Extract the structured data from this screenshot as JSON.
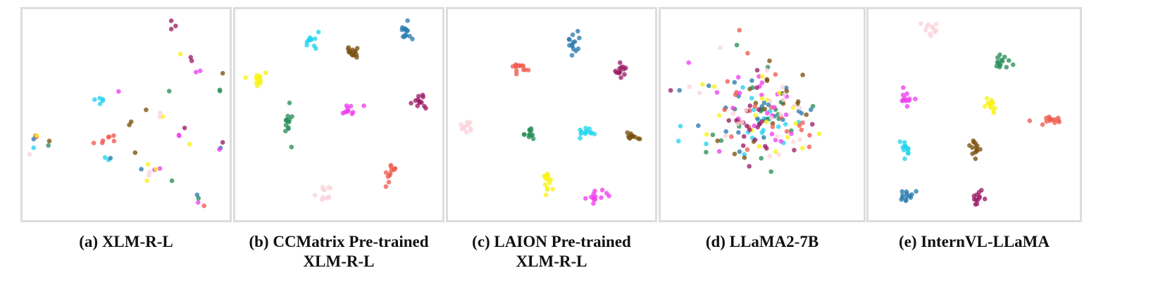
{
  "palette": {
    "cyan": "#22d3ee",
    "blue": "#2b7bb0",
    "brown": "#7a5210",
    "green": "#2a8f5a",
    "red": "#ef5b50",
    "magenta": "#ee3ff0",
    "yellow": "#f8f214",
    "maroon": "#9c1c66",
    "pink": "#fbd3dd"
  },
  "chart_data": [
    {
      "type": "scatter",
      "caption_lines": [
        "(a) XLM-R-L"
      ],
      "xlim": [
        0,
        100
      ],
      "ylim": [
        0,
        100
      ],
      "grid": false,
      "axes": false,
      "clusters": [
        {
          "color": "cyan",
          "center": [
            36,
            60
          ],
          "spread": [
            4,
            4
          ],
          "n": 5
        },
        {
          "color": "cyan",
          "center": [
            40,
            28
          ],
          "spread": [
            1.5,
            1.5
          ],
          "n": 2
        },
        {
          "color": "cyan",
          "center": [
            3,
            34
          ],
          "spread": [
            1,
            1
          ],
          "n": 1
        },
        {
          "color": "red",
          "center": [
            40,
            37
          ],
          "spread": [
            6,
            3
          ],
          "n": 7
        },
        {
          "color": "red",
          "center": [
            4,
            40
          ],
          "spread": [
            1.5,
            1.5
          ],
          "n": 2
        },
        {
          "color": "red",
          "center": [
            89,
            5
          ],
          "spread": [
            1,
            1
          ],
          "n": 1
        },
        {
          "color": "blue",
          "center": [
            43,
            29
          ],
          "spread": [
            1.5,
            1.5
          ],
          "n": 1
        },
        {
          "color": "blue",
          "center": [
            58,
            22
          ],
          "spread": [
            1,
            1
          ],
          "n": 1
        },
        {
          "color": "blue",
          "center": [
            86,
            10
          ],
          "spread": [
            1,
            1
          ],
          "n": 1
        },
        {
          "color": "blue",
          "center": [
            98,
            33
          ],
          "spread": [
            1,
            1
          ],
          "n": 1
        },
        {
          "color": "blue",
          "center": [
            3,
            37
          ],
          "spread": [
            1,
            1
          ],
          "n": 1
        },
        {
          "color": "magenta",
          "center": [
            46,
            62
          ],
          "spread": [
            1,
            1
          ],
          "n": 1
        },
        {
          "color": "magenta",
          "center": [
            67,
            23
          ],
          "spread": [
            2,
            2
          ],
          "n": 2
        },
        {
          "color": "magenta",
          "center": [
            86,
            72
          ],
          "spread": [
            2,
            2
          ],
          "n": 2
        },
        {
          "color": "magenta",
          "center": [
            76,
            40
          ],
          "spread": [
            2,
            1
          ],
          "n": 2
        },
        {
          "color": "magenta",
          "center": [
            86,
            6
          ],
          "spread": [
            1,
            1
          ],
          "n": 1
        },
        {
          "color": "magenta",
          "center": [
            97,
            33
          ],
          "spread": [
            1,
            1
          ],
          "n": 1
        },
        {
          "color": "yellow",
          "center": [
            5,
            40
          ],
          "spread": [
            1,
            1
          ],
          "n": 1
        },
        {
          "color": "yellow",
          "center": [
            68,
            50
          ],
          "spread": [
            1,
            1
          ],
          "n": 1
        },
        {
          "color": "yellow",
          "center": [
            82,
            35
          ],
          "spread": [
            1,
            1
          ],
          "n": 1
        },
        {
          "color": "yellow",
          "center": [
            64,
            23
          ],
          "spread": [
            2,
            2
          ],
          "n": 2
        },
        {
          "color": "yellow",
          "center": [
            60,
            17
          ],
          "spread": [
            1,
            1
          ],
          "n": 1
        },
        {
          "color": "yellow",
          "center": [
            78,
            80
          ],
          "spread": [
            1,
            1
          ],
          "n": 1
        },
        {
          "color": "maroon",
          "center": [
            73,
            95
          ],
          "spread": [
            2,
            3
          ],
          "n": 3
        },
        {
          "color": "maroon",
          "center": [
            80,
            78
          ],
          "spread": [
            3,
            2
          ],
          "n": 2
        },
        {
          "color": "maroon",
          "center": [
            81,
            43
          ],
          "spread": [
            1,
            1
          ],
          "n": 1
        },
        {
          "color": "maroon",
          "center": [
            98,
            36
          ],
          "spread": [
            1,
            1
          ],
          "n": 1
        },
        {
          "color": "green",
          "center": [
            72,
            62
          ],
          "spread": [
            1,
            1
          ],
          "n": 1
        },
        {
          "color": "green",
          "center": [
            97,
            63
          ],
          "spread": [
            1,
            2
          ],
          "n": 2
        },
        {
          "color": "green",
          "center": [
            10,
            35
          ],
          "spread": [
            1,
            1
          ],
          "n": 1
        },
        {
          "color": "green",
          "center": [
            73,
            18
          ],
          "spread": [
            1,
            1
          ],
          "n": 1
        },
        {
          "color": "green",
          "center": [
            87,
            8
          ],
          "spread": [
            1,
            1
          ],
          "n": 1
        },
        {
          "color": "brown",
          "center": [
            53,
            46
          ],
          "spread": [
            1.5,
            1.5
          ],
          "n": 2
        },
        {
          "color": "brown",
          "center": [
            60,
            52
          ],
          "spread": [
            1,
            1
          ],
          "n": 1
        },
        {
          "color": "brown",
          "center": [
            55,
            32
          ],
          "spread": [
            1,
            1
          ],
          "n": 1
        },
        {
          "color": "brown",
          "center": [
            98,
            70
          ],
          "spread": [
            1,
            1
          ],
          "n": 1
        },
        {
          "color": "brown",
          "center": [
            10,
            37
          ],
          "spread": [
            1,
            1
          ],
          "n": 1
        },
        {
          "color": "pink",
          "center": [
            62,
            20
          ],
          "spread": [
            2,
            1
          ],
          "n": 2
        },
        {
          "color": "pink",
          "center": [
            2,
            30
          ],
          "spread": [
            1,
            1
          ],
          "n": 1
        },
        {
          "color": "pink",
          "center": [
            68,
            50
          ],
          "spread": [
            1.5,
            1.5
          ],
          "n": 2
        }
      ]
    },
    {
      "type": "scatter",
      "caption_lines": [
        "(b) CCMatrix Pre-trained",
        "XLM-R-L"
      ],
      "xlim": [
        0,
        100
      ],
      "ylim": [
        0,
        100
      ],
      "grid": false,
      "axes": false,
      "clusters": [
        {
          "color": "cyan",
          "center": [
            36,
            86
          ],
          "spread": [
            3,
            5
          ],
          "n": 12
        },
        {
          "color": "brown",
          "center": [
            57,
            81
          ],
          "spread": [
            3,
            3
          ],
          "n": 14
        },
        {
          "color": "blue",
          "center": [
            84,
            92
          ],
          "spread": [
            3,
            4
          ],
          "n": 14
        },
        {
          "color": "yellow",
          "center": [
            8,
            68
          ],
          "spread": [
            4,
            3
          ],
          "n": 13
        },
        {
          "color": "maroon",
          "center": [
            91,
            56
          ],
          "spread": [
            3,
            4
          ],
          "n": 13
        },
        {
          "color": "magenta",
          "center": [
            55,
            53
          ],
          "spread": [
            4,
            3
          ],
          "n": 12
        },
        {
          "color": "green",
          "center": [
            25,
            45
          ],
          "spread": [
            2,
            7
          ],
          "n": 14
        },
        {
          "color": "red",
          "center": [
            76,
            22
          ],
          "spread": [
            3,
            5
          ],
          "n": 12
        },
        {
          "color": "pink",
          "center": [
            43,
            11
          ],
          "spread": [
            3,
            4
          ],
          "n": 12
        }
      ]
    },
    {
      "type": "scatter",
      "caption_lines": [
        "(c) LAION Pre-trained",
        "XLM-R-L"
      ],
      "xlim": [
        0,
        100
      ],
      "ylim": [
        0,
        100
      ],
      "grid": false,
      "axes": false,
      "clusters": [
        {
          "color": "blue",
          "center": [
            61,
            86
          ],
          "spread": [
            3,
            7
          ],
          "n": 14
        },
        {
          "color": "red",
          "center": [
            34,
            74
          ],
          "spread": [
            4,
            3
          ],
          "n": 13
        },
        {
          "color": "maroon",
          "center": [
            85,
            71
          ],
          "spread": [
            3,
            3
          ],
          "n": 13
        },
        {
          "color": "pink",
          "center": [
            8,
            44
          ],
          "spread": [
            3,
            3
          ],
          "n": 12
        },
        {
          "color": "green",
          "center": [
            39,
            40
          ],
          "spread": [
            2,
            3
          ],
          "n": 12
        },
        {
          "color": "cyan",
          "center": [
            68,
            41
          ],
          "spread": [
            4,
            2
          ],
          "n": 12
        },
        {
          "color": "brown",
          "center": [
            91,
            40
          ],
          "spread": [
            3,
            2
          ],
          "n": 12
        },
        {
          "color": "yellow",
          "center": [
            48,
            16
          ],
          "spread": [
            2,
            5
          ],
          "n": 14
        },
        {
          "color": "magenta",
          "center": [
            73,
            9
          ],
          "spread": [
            4,
            3
          ],
          "n": 13
        }
      ]
    },
    {
      "type": "scatter",
      "caption_lines": [
        "(d) LLaMA2-7B"
      ],
      "xlim": [
        0,
        100
      ],
      "ylim": [
        0,
        100
      ],
      "grid": false,
      "axes": false,
      "clusters": [
        {
          "color": "cyan",
          "center": [
            50,
            48
          ],
          "spread": [
            28,
            22
          ],
          "n": 20
        },
        {
          "color": "blue",
          "center": [
            48,
            52
          ],
          "spread": [
            28,
            22
          ],
          "n": 24
        },
        {
          "color": "brown",
          "center": [
            52,
            52
          ],
          "spread": [
            26,
            22
          ],
          "n": 20
        },
        {
          "color": "green",
          "center": [
            45,
            50
          ],
          "spread": [
            28,
            22
          ],
          "n": 20
        },
        {
          "color": "red",
          "center": [
            55,
            55
          ],
          "spread": [
            26,
            22
          ],
          "n": 22
        },
        {
          "color": "magenta",
          "center": [
            52,
            55
          ],
          "spread": [
            26,
            22
          ],
          "n": 22
        },
        {
          "color": "yellow",
          "center": [
            50,
            40
          ],
          "spread": [
            28,
            22
          ],
          "n": 18
        },
        {
          "color": "maroon",
          "center": [
            48,
            48
          ],
          "spread": [
            28,
            22
          ],
          "n": 22
        },
        {
          "color": "pink",
          "center": [
            52,
            54
          ],
          "spread": [
            28,
            22
          ],
          "n": 22
        }
      ]
    },
    {
      "type": "scatter",
      "caption_lines": [
        "(e) InternVL-LLaMA"
      ],
      "xlim": [
        0,
        100
      ],
      "ylim": [
        0,
        100
      ],
      "grid": false,
      "axes": false,
      "clusters": [
        {
          "color": "pink",
          "center": [
            28,
            92
          ],
          "spread": [
            4,
            3
          ],
          "n": 12
        },
        {
          "color": "green",
          "center": [
            64,
            77
          ],
          "spread": [
            3,
            4
          ],
          "n": 14
        },
        {
          "color": "magenta",
          "center": [
            16,
            58
          ],
          "spread": [
            3,
            3
          ],
          "n": 12
        },
        {
          "color": "yellow",
          "center": [
            58,
            54
          ],
          "spread": [
            3,
            4
          ],
          "n": 13
        },
        {
          "color": "red",
          "center": [
            88,
            47
          ],
          "spread": [
            6,
            2
          ],
          "n": 14
        },
        {
          "color": "cyan",
          "center": [
            16,
            33
          ],
          "spread": [
            3,
            4
          ],
          "n": 12
        },
        {
          "color": "brown",
          "center": [
            51,
            34
          ],
          "spread": [
            3,
            3
          ],
          "n": 13
        },
        {
          "color": "blue",
          "center": [
            16,
            10
          ],
          "spread": [
            3,
            3
          ],
          "n": 13
        },
        {
          "color": "maroon",
          "center": [
            52,
            9
          ],
          "spread": [
            3,
            3
          ],
          "n": 12
        }
      ]
    }
  ]
}
